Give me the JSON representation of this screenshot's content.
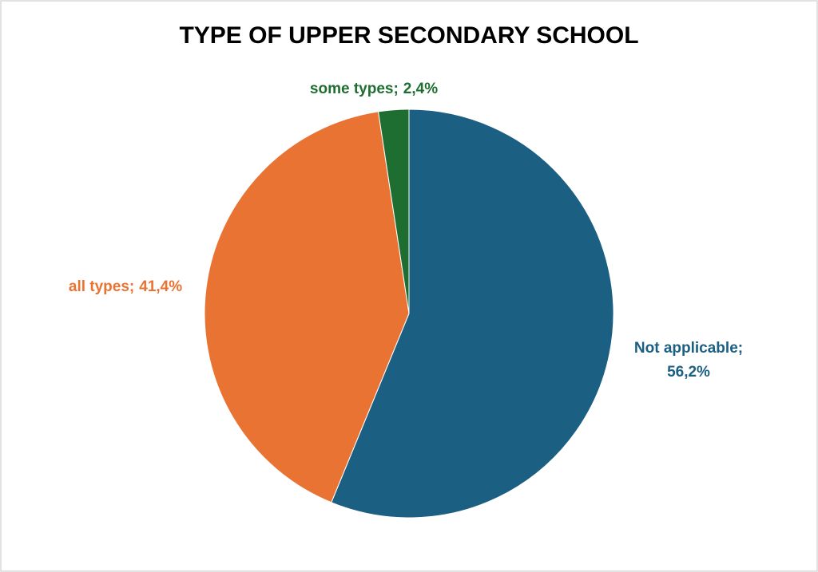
{
  "chart_data": {
    "type": "pie",
    "title": "TYPE OF UPPER SECONDARY SCHOOL",
    "categories": [
      "Not applicable;",
      "all types;",
      "some types;"
    ],
    "values": [
      56.2,
      41.4,
      2.4
    ],
    "value_labels": [
      "56,2%",
      "41,4%",
      "2,4%"
    ],
    "colors": [
      "#1b5f82",
      "#e97332",
      "#1f6e31"
    ]
  }
}
